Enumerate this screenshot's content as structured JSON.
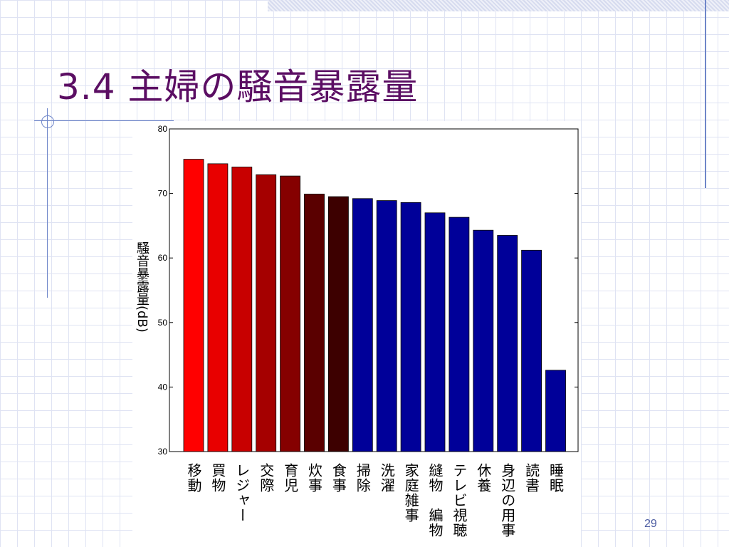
{
  "slide": {
    "title": "3.4 主婦の騒音暴露量",
    "page_number": "29"
  },
  "chart_data": {
    "type": "bar",
    "title": "",
    "xlabel": "",
    "ylabel": "騒音暴露量(dB)",
    "ylim": [
      30,
      80
    ],
    "yticks": [
      30,
      40,
      50,
      60,
      70,
      80
    ],
    "grid": false,
    "categories": [
      "移動",
      "買物",
      "レジャー",
      "交際",
      "育児",
      "炊事",
      "食事",
      "掃除",
      "洗濯",
      "家庭雑事",
      "縫物 編物",
      "テレビ視聴",
      "休養",
      "身辺の用事",
      "読書",
      "睡眠"
    ],
    "category_label_columns": [
      [
        "移",
        "動"
      ],
      [
        "買",
        "物"
      ],
      [
        "レ",
        "ジ",
        "ャ",
        "ー"
      ],
      [
        "交",
        "際"
      ],
      [
        "育",
        "児"
      ],
      [
        "炊",
        "事"
      ],
      [
        "食",
        "事"
      ],
      [
        "掃",
        "除"
      ],
      [
        "洗",
        "濯"
      ],
      [
        "家",
        "庭",
        "雑",
        "事"
      ],
      [
        "縫",
        "物",
        "",
        "編",
        "物"
      ],
      [
        "テ",
        "レ",
        "ビ",
        "視",
        "聴"
      ],
      [
        "休",
        "養"
      ],
      [
        "身",
        "辺",
        "の",
        "用",
        "事"
      ],
      [
        "読",
        "書"
      ],
      [
        "睡",
        "眠"
      ]
    ],
    "values": [
      75.3,
      74.6,
      74.1,
      72.9,
      72.7,
      69.9,
      69.5,
      69.2,
      68.9,
      68.6,
      67.0,
      66.3,
      64.3,
      63.5,
      61.2,
      42.6
    ],
    "colors": [
      "#ff0000",
      "#e80000",
      "#c80000",
      "#a50000",
      "#850000",
      "#5a0000",
      "#3d0000",
      "#000099",
      "#000099",
      "#000099",
      "#000099",
      "#000099",
      "#000099",
      "#000099",
      "#000099",
      "#000099"
    ]
  }
}
